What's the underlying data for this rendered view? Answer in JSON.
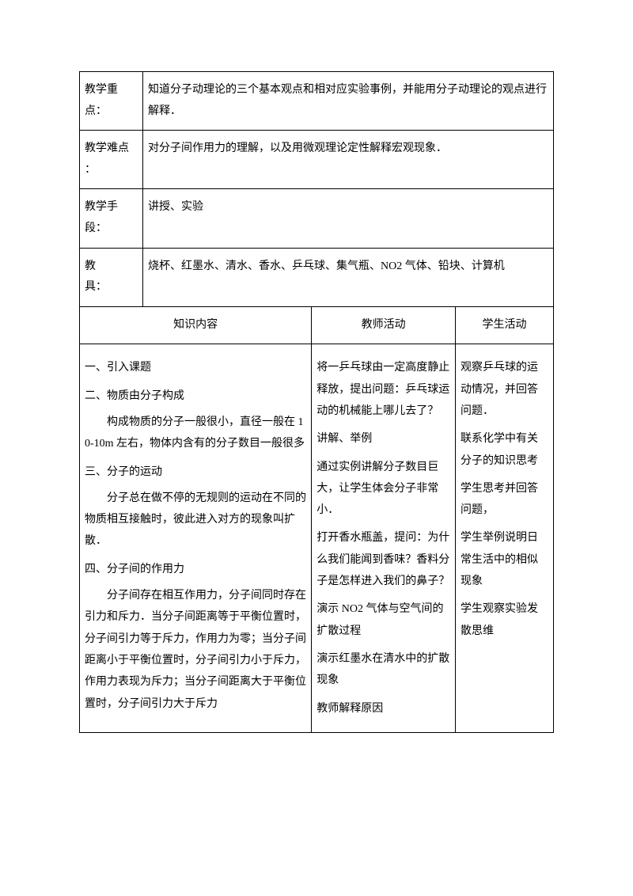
{
  "rows": {
    "focus": {
      "label": "教学重点：",
      "value": "知道分子动理论的三个基本观点和相对应实验事例，并能用分子动理论的观点进行解释．"
    },
    "difficulty": {
      "label": "教学难点 ：",
      "value": "对分子间作用力的理解，以及用微观理论定性解释宏观现象．"
    },
    "method": {
      "label": "教学手段：",
      "value": "讲授、实验"
    },
    "tools": {
      "label": "教　　具：",
      "value": "烧杯、红墨水、清水、香水、乒乓球、集气瓶、NO2 气体、铅块、计算机"
    }
  },
  "headers": {
    "c1": "知识内容",
    "c2": "教师活动",
    "c3": "学生活动"
  },
  "knowledge": {
    "s1": "一、引入课题",
    "s2": "二、物质由分子构成",
    "p1": "构成物质的分子一般很小，直径一般在 10-10m 左右，物体内含有的分子数目一般很多",
    "s3": "三、分子的运动",
    "p2": "分子总在做不停的无规则的运动在不同的物质相互接触时，彼此进入对方的现象叫扩散．",
    "s4": "四、分子间的作用力",
    "p3": "分子间存在相互作用力，分子间同时存在引力和斥力．当分子间距离等于平衡位置时，分子间引力等于斥力，作用力为零；当分子间距离小于平衡位置时，分子间引力小于斥力，作用力表现为斥力；当分子间距离大于平衡位置时，分子间引力大于斥力"
  },
  "teacher": {
    "t1": "将一乒乓球由一定高度静止释放，提出问题：乒乓球运动的机械能上哪儿去了？",
    "t2": "讲解、举例",
    "t3": "通过实例讲解分子数目巨大，让学生体会分子非常小．",
    "t4": "打开香水瓶盖，提问：为什么我们能闻到香味？香料分子是怎样进入我们的鼻子？",
    "t5": "演示 NO2 气体与空气间的扩散过程",
    "t6": "演示红墨水在清水中的扩散现象",
    "t7": "教师解释原因"
  },
  "student": {
    "s1": "观察乒乓球的运动情况，并回答问题．",
    "s2": "联系化学中有关分子的知识思考",
    "s3": "学生思考并回答问题，",
    "s4": "学生举例说明日常生活中的相似现象",
    "s5": "学生观察实验发散思维"
  }
}
